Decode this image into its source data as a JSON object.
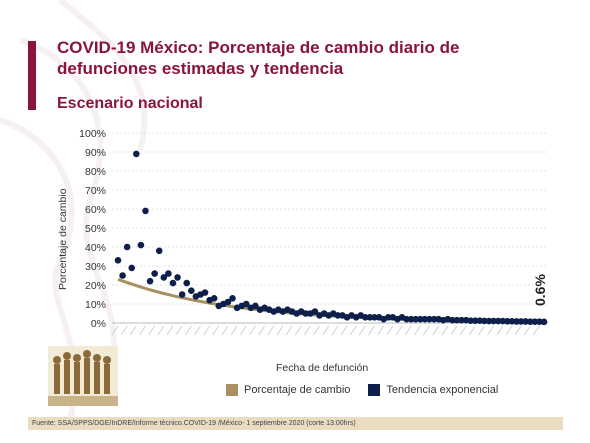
{
  "header": {
    "title": "COVID-19 México: Porcentaje de cambio diario de defunciones estimadas y tendencia",
    "subtitle": "Escenario nacional"
  },
  "footer": {
    "source": "Fuente: SSA/SPPS/DGE/InDRE/Informe técnico.COVID-19 /México- 1 septiembre 2020 (corte 13:00hrs)"
  },
  "colors": {
    "accent": "#8a1538",
    "trend_line": "#a89060",
    "points": "#0d1f4a",
    "footer_band": "#e9dcc0"
  },
  "chart_data": {
    "type": "scatter",
    "title": "",
    "xlabel": "Fecha de defunción",
    "ylabel": "Porcentaje de cambio",
    "ylim": [
      0,
      100
    ],
    "yticks": [
      "0%",
      "10%",
      "20%",
      "30%",
      "40%",
      "50%",
      "60%",
      "70%",
      "80%",
      "90%",
      "100%"
    ],
    "grid": true,
    "legend_position": "bottom",
    "end_label": "0.6%",
    "series": [
      {
        "name": "Tendencia exponencial",
        "type": "scatter",
        "values": [
          33,
          25,
          40,
          29,
          89,
          41,
          59,
          22,
          26,
          38,
          24,
          26,
          21,
          24,
          15,
          21,
          17,
          14,
          15,
          16,
          12,
          13,
          9,
          10,
          11,
          13,
          8,
          9,
          10,
          8,
          9,
          7,
          8,
          7,
          6,
          7,
          6,
          7,
          6,
          5,
          6,
          5,
          5,
          6,
          4,
          5,
          4,
          5,
          4,
          4,
          3,
          4,
          3,
          4,
          3,
          3,
          3,
          3,
          2,
          3,
          3,
          2,
          3,
          2,
          2,
          2,
          2,
          2,
          2,
          2,
          2,
          1.5,
          2,
          1.5,
          1.5,
          1.5,
          1.5,
          1.2,
          1.2,
          1.2,
          1.1,
          1.0,
          1.0,
          1.0,
          1.0,
          0.9,
          0.9,
          0.8,
          0.8,
          0.8,
          0.7,
          0.7,
          0.7,
          0.6
        ]
      },
      {
        "name": "Porcentaje de cambio",
        "type": "line",
        "start": 23,
        "end": 0.6
      }
    ]
  },
  "legend": {
    "line_label": "Porcentaje de cambio",
    "points_label": "Tendencia exponencial"
  }
}
